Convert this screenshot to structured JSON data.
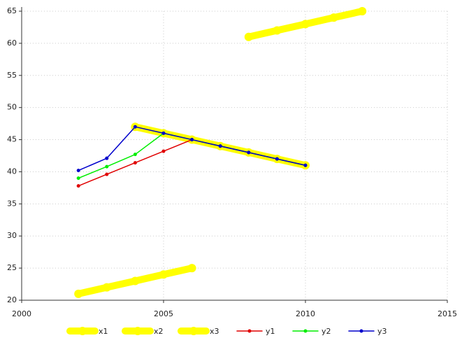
{
  "chart_data": {
    "type": "line",
    "xlim": [
      2000,
      2015
    ],
    "xticks": [
      2000,
      2005,
      2010,
      2015
    ],
    "ylim": [
      20,
      65
    ],
    "yticks": [
      20,
      25,
      30,
      35,
      40,
      45,
      50,
      55,
      60,
      65
    ],
    "grid": true,
    "legend": "bottom",
    "series": [
      {
        "name": "x1",
        "color": "#ffff00",
        "width": "thick",
        "x": [
          2002,
          2003,
          2004,
          2005,
          2006
        ],
        "values": [
          21,
          22,
          23,
          24,
          25
        ]
      },
      {
        "name": "x2",
        "color": "#ffff00",
        "width": "thick",
        "x": [
          2004,
          2005,
          2006,
          2007,
          2008,
          2009,
          2010
        ],
        "values": [
          47,
          46,
          45,
          44,
          43,
          42,
          41
        ]
      },
      {
        "name": "x3",
        "color": "#ffff00",
        "width": "thick",
        "x": [
          2008,
          2009,
          2010,
          2011,
          2012
        ],
        "values": [
          61,
          62,
          63,
          64,
          65
        ]
      },
      {
        "name": "y1",
        "color": "#e00000",
        "width": "thin",
        "x": [
          2002,
          2003,
          2004,
          2005,
          2006,
          2007,
          2008,
          2009,
          2010
        ],
        "values": [
          37.8,
          39.6,
          41.4,
          43.2,
          45,
          44,
          43,
          42,
          41
        ]
      },
      {
        "name": "y2",
        "color": "#00ee00",
        "width": "thin",
        "x": [
          2002,
          2003,
          2004,
          2005,
          2006,
          2007,
          2008,
          2009,
          2010
        ],
        "values": [
          39,
          40.8,
          42.7,
          46,
          45,
          44,
          43,
          42,
          41
        ]
      },
      {
        "name": "y3",
        "color": "#0000cc",
        "width": "thin",
        "x": [
          2002,
          2003,
          2004,
          2005,
          2006,
          2007,
          2008,
          2009,
          2010
        ],
        "values": [
          40.2,
          42.1,
          47,
          46,
          45,
          44,
          43,
          42,
          41
        ]
      }
    ]
  }
}
